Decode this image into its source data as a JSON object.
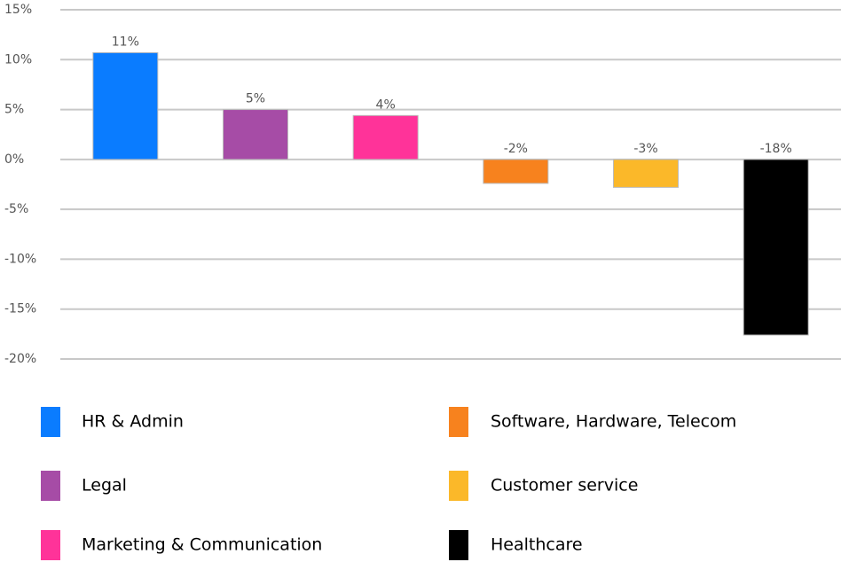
{
  "chart_data": {
    "type": "bar",
    "categories": [
      "HR & Admin",
      "Legal",
      "Marketing & Communication",
      "Software, Hardware, Telecom",
      "Customer service",
      "Healthcare"
    ],
    "values": [
      10.7,
      5.0,
      4.4,
      -2.4,
      -2.8,
      -17.6
    ],
    "value_labels": [
      "11%",
      "5%",
      "4%",
      "-2%",
      "-3%",
      "-18%"
    ],
    "colors": [
      "#0a7cff",
      "#a64ca6",
      "#ff3399",
      "#f7821e",
      "#fbb829",
      "#000000"
    ],
    "ylim": [
      -20,
      15
    ],
    "yticks": [
      {
        "value": -20,
        "label": "-20%"
      },
      {
        "value": -15,
        "label": "-15%"
      },
      {
        "value": -10,
        "label": "-10%"
      },
      {
        "value": -5,
        "label": "-5%"
      },
      {
        "value": 0,
        "label": "0%"
      },
      {
        "value": 5,
        "label": "5%"
      },
      {
        "value": 10,
        "label": "10%"
      },
      {
        "value": 15,
        "label": "15%"
      }
    ],
    "grid": true,
    "legend": "bottom"
  }
}
